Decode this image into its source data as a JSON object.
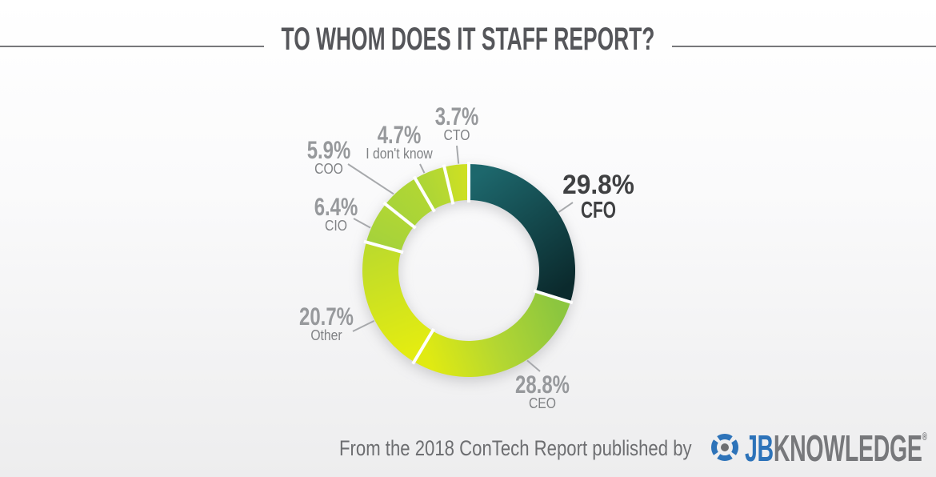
{
  "title": "TO WHOM DOES IT STAFF REPORT?",
  "footer": {
    "text": "From the 2018 ConTech Report published by",
    "brand_jb": "JB",
    "brand_knowledge": "KNOWLEDGE",
    "registered": "®",
    "brand_blue": "#2d73b9",
    "brand_gray": "#77787b"
  },
  "chart_data": {
    "type": "pie",
    "donut": true,
    "title": "To Whom Does IT Staff Report?",
    "start_angle_deg": 0,
    "direction": "clockwise",
    "segments": [
      {
        "label": "CFO",
        "value": 29.8,
        "color_start": "#1d676c",
        "color_end": "#0b2a2d",
        "emphasis": true
      },
      {
        "label": "CEO",
        "value": 28.8,
        "color_start": "#8cc63f",
        "color_mid": "#b3d632",
        "color_end": "#e0ea12"
      },
      {
        "label": "Other",
        "value": 20.7,
        "color_start": "#e3ec11",
        "color_end": "#bedb2b"
      },
      {
        "label": "CIO",
        "value": 6.4,
        "color_start": "#a5d23b",
        "color_end": "#b0d635"
      },
      {
        "label": "COO",
        "value": 5.9,
        "color_start": "#a8d438",
        "color_end": "#b1d634"
      },
      {
        "label": "I don't know",
        "value": 4.7,
        "color_start": "#acd536",
        "color_end": "#bad930"
      },
      {
        "label": "CTO",
        "value": 3.7,
        "color_start": "#c2dc2a",
        "color_end": "#cfe021"
      }
    ],
    "leader_line_color": "#a7a9ac"
  }
}
